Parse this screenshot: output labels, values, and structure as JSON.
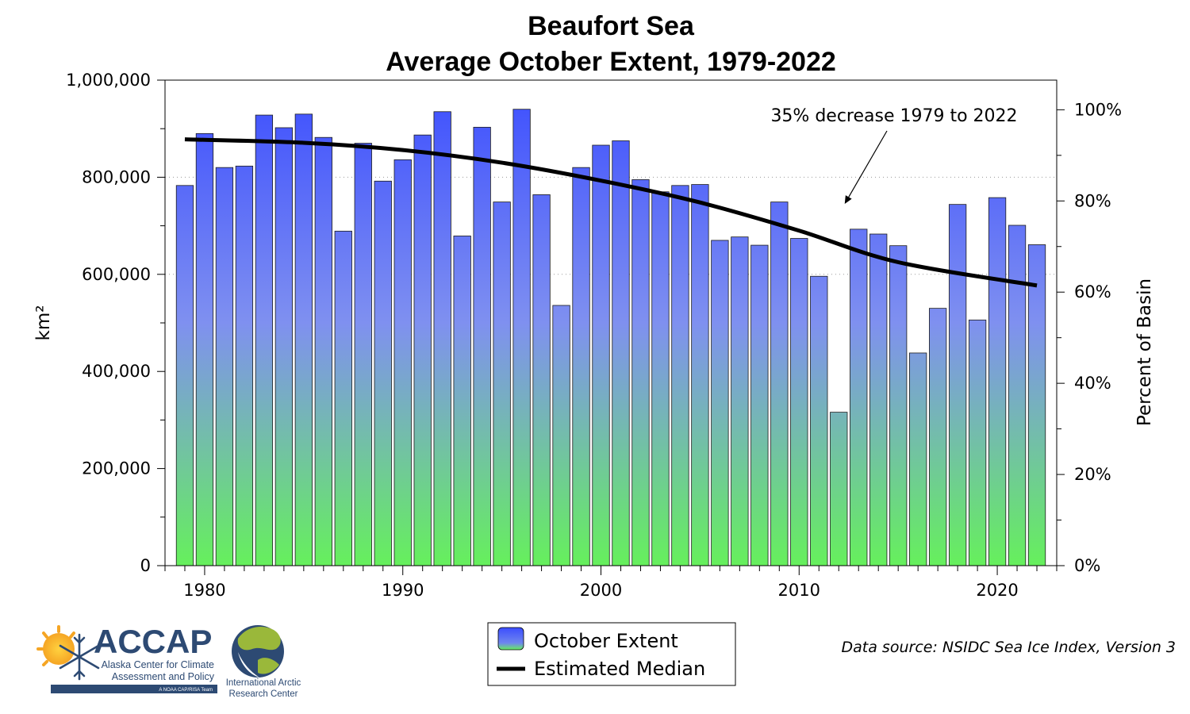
{
  "chart_data": {
    "type": "bar",
    "title_line1": "Beaufort Sea",
    "title_line2": "Average October Extent, 1979-2022",
    "ylabel": "km²",
    "ylabel_right": "Percent of Basin",
    "xlim": [
      1978,
      2023
    ],
    "ylim": [
      0,
      1000000
    ],
    "x_ticks": [
      1980,
      1990,
      2000,
      2010,
      2020
    ],
    "y_ticks": [
      {
        "value": 0,
        "label": "0"
      },
      {
        "value": 200000,
        "label": "200,000"
      },
      {
        "value": 400000,
        "label": "400,000"
      },
      {
        "value": 600000,
        "label": "600,000"
      },
      {
        "value": 800000,
        "label": "800,000"
      },
      {
        "value": 1000000,
        "label": "1,000,000"
      }
    ],
    "y2_max_percent": 106.5,
    "y2_ticks": [
      {
        "value": 0,
        "label": "0%"
      },
      {
        "value": 20,
        "label": "20%"
      },
      {
        "value": 40,
        "label": "40%"
      },
      {
        "value": 60,
        "label": "60%"
      },
      {
        "value": 80,
        "label": "80%"
      },
      {
        "value": 100,
        "label": "100%"
      }
    ],
    "grid": "horizontal dotted at 600,000 and 800,000",
    "years": [
      1979,
      1980,
      1981,
      1982,
      1983,
      1984,
      1985,
      1986,
      1987,
      1988,
      1989,
      1990,
      1991,
      1992,
      1993,
      1994,
      1995,
      1996,
      1997,
      1998,
      1999,
      2000,
      2001,
      2002,
      2003,
      2004,
      2005,
      2006,
      2007,
      2008,
      2009,
      2010,
      2011,
      2012,
      2013,
      2014,
      2015,
      2016,
      2017,
      2018,
      2019,
      2020,
      2021,
      2022
    ],
    "values": [
      783000,
      890000,
      820000,
      823000,
      928000,
      902000,
      930000,
      882000,
      689000,
      870000,
      792000,
      836000,
      887000,
      935000,
      679000,
      903000,
      749000,
      940000,
      764000,
      536000,
      820000,
      866000,
      875000,
      795000,
      770000,
      783000,
      785000,
      670000,
      677000,
      660000,
      749000,
      674000,
      596000,
      316000,
      693000,
      683000,
      659000,
      438000,
      530000,
      744000,
      506000,
      758000,
      701000,
      661000
    ],
    "median_series": {
      "name": "Estimated Median",
      "x": [
        1979,
        1985,
        1990,
        1995,
        2000,
        2005,
        2010,
        2015,
        2022
      ],
      "y": [
        878000,
        871000,
        856000,
        830000,
        793000,
        748000,
        690000,
        625000,
        577000
      ]
    },
    "bar_series_name": "October Extent",
    "annotation": {
      "text": "35% decrease 1979 to 2022",
      "arrow_to": {
        "x": 2012.3,
        "y": 745000
      }
    },
    "legend": {
      "placement": "bottom-center",
      "items": [
        "October Extent",
        "Estimated Median"
      ]
    },
    "colors": {
      "bar_top": "#3b4dff",
      "bar_bottom": "#66f05c",
      "median": "#000000"
    }
  },
  "source_text": "Data source: NSIDC Sea Ice Index, Version 3",
  "logos": {
    "accap": {
      "name": "ACCAP",
      "line1": "Alaska Center for Climate",
      "line2": "Assessment and Policy",
      "tag": "A NOAA CAP/RISA Team"
    },
    "iarc": {
      "line1": "International Arctic",
      "line2": "Research Center"
    }
  }
}
